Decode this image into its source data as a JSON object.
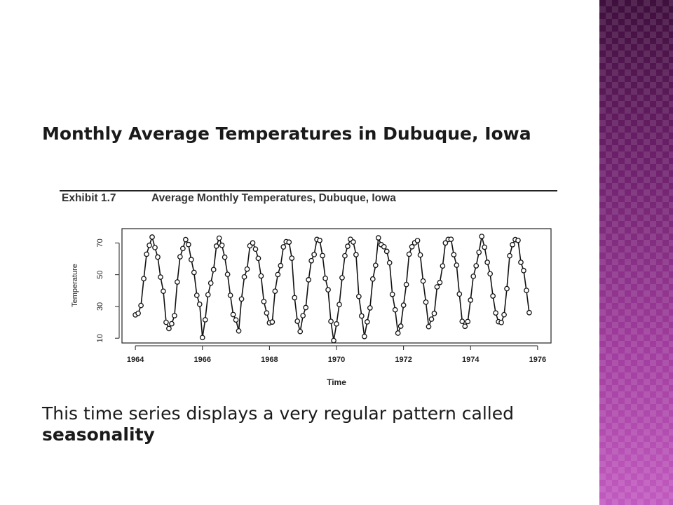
{
  "slide": {
    "heading": "Monthly Average Temperatures in Dubuque, Iowa",
    "body_prefix": "This time series displays a very regular pattern called ",
    "body_emphasis": "seasonality",
    "accent_colors": {
      "panel_dark": "#3f0f3d",
      "panel_light": "#c25bc0"
    }
  },
  "exhibit": {
    "number": "Exhibit 1.7",
    "title": "Average Monthly Temperatures, Dubuque, Iowa"
  },
  "chart_data": {
    "type": "line",
    "xlabel": "Time",
    "ylabel": "Temperature",
    "xlim": [
      1963.6,
      1976.4
    ],
    "ylim": [
      7,
      79
    ],
    "xticks": [
      1964,
      1966,
      1968,
      1970,
      1972,
      1974,
      1976
    ],
    "yticks": [
      10,
      30,
      50,
      70
    ],
    "marker": "open-circle",
    "grid": false,
    "start": "1964-01",
    "frequency": "monthly",
    "series": [
      {
        "values": [
          24.7,
          25.7,
          30.6,
          47.5,
          62.9,
          68.5,
          73.7,
          67.1,
          61.1,
          48.5,
          39.6,
          20.0,
          16.1,
          19.1,
          24.2,
          45.4,
          61.3,
          66.5,
          72.1,
          69.0,
          59.5,
          51.4,
          37.0,
          31.4,
          10.4,
          21.6,
          37.4,
          44.7,
          53.2,
          68.0,
          73.0,
          68.5,
          61.0,
          50.2,
          37.0,
          24.9,
          21.5,
          14.6,
          34.7,
          48.6,
          53.5,
          68.2,
          70.0,
          66.1,
          60.3,
          49.2,
          33.1,
          25.9,
          19.7,
          20.2,
          39.6,
          50.1,
          55.7,
          67.5,
          70.8,
          70.5,
          60.4,
          35.5,
          20.7,
          14.2,
          24.2,
          29.3,
          46.8,
          58.8,
          62.7,
          72.2,
          71.6,
          62.0,
          47.7,
          40.5,
          20.6,
          8.5,
          19.0,
          31.2,
          48.1,
          61.9,
          67.9,
          72.3,
          70.6,
          62.6,
          36.3,
          24.0,
          11.1,
          20.3,
          29.1,
          47.3,
          55.9,
          73.2,
          68.9,
          67.6,
          64.7,
          57.5,
          37.6,
          27.9,
          13.2,
          17.6,
          30.8,
          43.8,
          62.9,
          67.6,
          70.1,
          71.5,
          62.4,
          46.0,
          32.7,
          17.3,
          22.0,
          25.6,
          42.3,
          45.1,
          55.5,
          70.0,
          72.2,
          72.3,
          62.6,
          56.0,
          37.8,
          20.6,
          17.5,
          20.5,
          34.0,
          49.0,
          55.6,
          64.1,
          74.1,
          67.3,
          57.8,
          50.6,
          36.6,
          25.9,
          20.4,
          19.9,
          24.8,
          41.2,
          61.9,
          68.9,
          72.1,
          71.6,
          57.8,
          52.6,
          40.1,
          26.1
        ]
      }
    ]
  }
}
